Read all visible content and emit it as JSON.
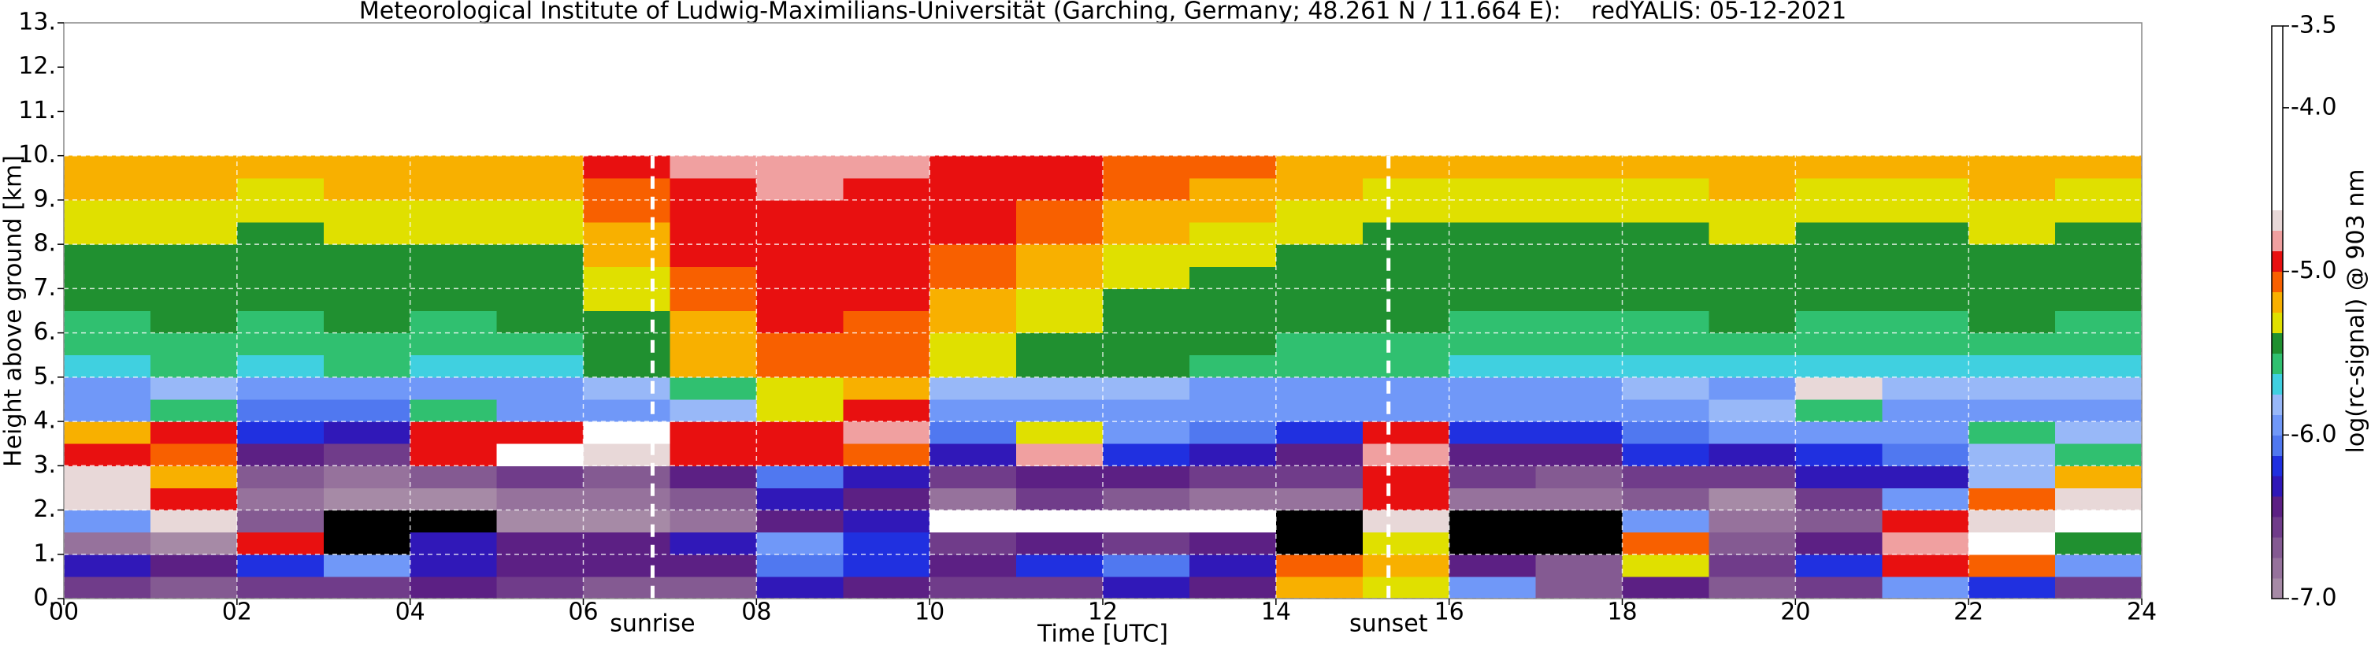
{
  "chart_data": {
    "type": "heatmap",
    "title": "Meteorological Institute of Ludwig-Maximilians-Universität (Garching, Germany; 48.261 N / 11.664 E):    redYALIS: 05-12-2021",
    "xlabel": "Time [UTC]",
    "ylabel": "Height above ground [km]",
    "colorbar_label": "log(rc-signal) @ 903 nm",
    "xlim": [
      0,
      24
    ],
    "ylim": [
      0,
      13
    ],
    "xticks": [
      {
        "value": 0,
        "label": "00"
      },
      {
        "value": 2,
        "label": "02"
      },
      {
        "value": 4,
        "label": "04"
      },
      {
        "value": 6,
        "label": "06"
      },
      {
        "value": 8,
        "label": "08"
      },
      10,
      12,
      14,
      16,
      18,
      20,
      22,
      24
    ],
    "yticks": [
      {
        "value": 0,
        "label": "0."
      },
      {
        "value": 1,
        "label": "1."
      },
      {
        "value": 2,
        "label": "2."
      },
      {
        "value": 3,
        "label": "3."
      },
      {
        "value": 4,
        "label": "4."
      },
      {
        "value": 5,
        "label": "5."
      },
      {
        "value": 6,
        "label": "6."
      },
      {
        "value": 7,
        "label": "7."
      },
      {
        "value": 8,
        "label": "8."
      },
      {
        "value": 9,
        "label": "9."
      },
      {
        "value": 10,
        "label": "10."
      },
      {
        "value": 11,
        "label": "11."
      },
      {
        "value": 12,
        "label": "12."
      },
      {
        "value": 13,
        "label": "13."
      }
    ],
    "grid": true,
    "grid_color": "#ffffff",
    "clim": [
      -7,
      -3.5
    ],
    "cticks": [
      -3.5,
      {
        "value": -4,
        "label": "-4.0"
      },
      {
        "value": -5,
        "label": "-5.0"
      },
      {
        "value": -6,
        "label": "-6.0"
      },
      {
        "value": -7,
        "label": "-7.0"
      }
    ],
    "under_color": "#000000",
    "colors": [
      "#a68aa6",
      "#96729c",
      "#845a92",
      "#703c8a",
      "#5c2084",
      "#3018b8",
      "#2030e0",
      "#5078f0",
      "#7098f8",
      "#98b8f8",
      "#40d0e0",
      "#30c070",
      "#209030",
      "#e0e000",
      "#f8b000",
      "#f86000",
      "#e81010",
      "#f0a0a0",
      "#e8d8d8",
      "#ffffff",
      "#ffffff",
      "#ffffff",
      "#ffffff",
      "#ffffff",
      "#ffffff",
      "#ffffff",
      "#ffffff",
      "#ffffff"
    ],
    "annotations": [
      {
        "text": "sunrise",
        "x": 6.8
      },
      {
        "text": "sunset",
        "x": 15.3
      }
    ],
    "x": [
      0.5,
      1.5,
      2.5,
      3.5,
      4.5,
      5.5,
      6.5,
      7.5,
      8.5,
      9.5,
      10.5,
      11.5,
      12.5,
      13.5,
      14.5,
      15.5,
      16.5,
      17.5,
      18.5,
      19.5,
      20.5,
      21.5,
      22.5,
      23.5
    ],
    "y": [
      0.25,
      0.75,
      1.25,
      1.75,
      2.25,
      2.75,
      3.25,
      3.75,
      4.25,
      4.75,
      5.25,
      5.75,
      6.25,
      6.75,
      7.25,
      7.75,
      8.25,
      8.75,
      9.25,
      9.75
    ],
    "z": [
      [
        -6.6,
        -6.7,
        -6.6,
        -6.6,
        -6.5,
        -6.6,
        -6.7,
        -6.7,
        -6.3,
        -6.4,
        -6.6,
        -6.6,
        -6.3,
        -6.5,
        -5.2,
        -5.3,
        -6.0,
        -6.7,
        -6.4,
        -6.7,
        -6.6,
        -6.0,
        -6.2,
        -6.6
      ],
      [
        -6.3,
        -6.4,
        -6.2,
        -6.0,
        -6.3,
        -6.4,
        -6.5,
        -6.4,
        -6.1,
        -6.2,
        -6.4,
        -6.2,
        -6.1,
        -6.3,
        -5.1,
        -5.2,
        -6.5,
        -6.7,
        -5.3,
        -6.6,
        -6.2,
        -5.0,
        -5.1,
        -6.0
      ],
      [
        -6.8,
        -6.9,
        -5.0,
        -7.5,
        -6.3,
        -6.4,
        -6.5,
        -6.3,
        -6.0,
        -6.2,
        -6.6,
        -6.5,
        -6.6,
        -6.4,
        -7.5,
        -5.3,
        -7.5,
        -7.5,
        -5.1,
        -6.7,
        -6.5,
        -4.8,
        -4.6,
        -5.5
      ],
      [
        -6.0,
        -4.7,
        -6.7,
        -7.5,
        -7.3,
        -6.9,
        -6.9,
        -6.8,
        -6.4,
        -6.3,
        -4.6,
        -4.6,
        -4.6,
        -4.6,
        -7.2,
        -4.7,
        -7.2,
        -7.4,
        -5.9,
        -6.8,
        -6.7,
        -4.9,
        -4.7,
        -4.6
      ],
      [
        -4.7,
        -5.0,
        -6.8,
        -6.9,
        -6.9,
        -6.8,
        -6.8,
        -6.7,
        -6.3,
        -6.4,
        -6.8,
        -6.6,
        -6.7,
        -6.8,
        -6.8,
        -4.9,
        -6.8,
        -6.8,
        -6.7,
        -6.9,
        -6.6,
        -6.0,
        -5.1,
        -4.7
      ],
      [
        -4.7,
        -5.2,
        -6.7,
        -6.8,
        -6.7,
        -6.6,
        -6.7,
        -6.5,
        -6.1,
        -6.3,
        -6.6,
        -6.5,
        -6.4,
        -6.6,
        -6.6,
        -5.0,
        -6.6,
        -6.7,
        -6.6,
        -6.6,
        -6.3,
        -6.3,
        -5.8,
        -5.2
      ],
      [
        -4.9,
        -5.1,
        -6.4,
        -6.6,
        -4.9,
        -4.6,
        -4.7,
        -5.0,
        -5.0,
        -5.1,
        -6.3,
        -4.8,
        -6.2,
        -6.3,
        -6.4,
        -4.8,
        -6.4,
        -6.5,
        -6.2,
        -6.3,
        -6.2,
        -6.1,
        -5.8,
        -5.6
      ],
      [
        -5.2,
        -5.0,
        -6.2,
        -6.3,
        -5.0,
        -4.9,
        -4.6,
        -4.9,
        -5.0,
        -4.8,
        -6.1,
        -5.3,
        -6.0,
        -6.1,
        -6.2,
        -5.0,
        -6.2,
        -6.2,
        -6.1,
        -6.0,
        -5.9,
        -6.0,
        -5.6,
        -5.8
      ],
      [
        -6.0,
        -5.6,
        -6.1,
        -6.1,
        -5.6,
        -6.0,
        -6.0,
        -5.8,
        -5.3,
        -5.0,
        -5.9,
        -6.0,
        -5.9,
        -6.0,
        -6.0,
        -6.0,
        -6.0,
        -6.0,
        -5.9,
        -5.8,
        -5.6,
        -5.9,
        -5.9,
        -5.9
      ],
      [
        -5.9,
        -5.8,
        -5.9,
        -5.9,
        -5.9,
        -5.9,
        -5.8,
        -5.6,
        -5.3,
        -5.2,
        -5.8,
        -5.8,
        -5.8,
        -5.9,
        -5.9,
        -5.9,
        -5.9,
        -5.9,
        -5.8,
        -5.9,
        -4.7,
        -5.8,
        -5.8,
        -5.8
      ],
      [
        -5.7,
        -5.6,
        -5.7,
        -5.6,
        -5.7,
        -5.7,
        -5.5,
        -5.2,
        -5.1,
        -5.1,
        -5.3,
        -5.4,
        -5.5,
        -5.6,
        -5.6,
        -5.6,
        -5.7,
        -5.7,
        -5.7,
        -5.7,
        -5.7,
        -5.7,
        -5.7,
        -5.7
      ],
      [
        -5.6,
        -5.6,
        -5.6,
        -5.6,
        -5.6,
        -5.6,
        -5.4,
        -5.2,
        -5.1,
        -5.1,
        -5.3,
        -5.4,
        -5.5,
        -5.5,
        -5.6,
        -5.6,
        -5.6,
        -5.6,
        -5.6,
        -5.6,
        -5.6,
        -5.6,
        -5.6,
        -5.6
      ],
      [
        -5.6,
        -5.5,
        -5.6,
        -5.5,
        -5.6,
        -5.5,
        -5.4,
        -5.2,
        -5.0,
        -5.1,
        -5.2,
        -5.3,
        -5.4,
        -5.5,
        -5.5,
        -5.5,
        -5.6,
        -5.6,
        -5.6,
        -5.5,
        -5.6,
        -5.6,
        -5.5,
        -5.6
      ],
      [
        -5.5,
        -5.5,
        -5.5,
        -5.5,
        -5.5,
        -5.5,
        -5.3,
        -5.1,
        -5.0,
        -5.0,
        -5.2,
        -5.3,
        -5.4,
        -5.4,
        -5.5,
        -5.5,
        -5.5,
        -5.5,
        -5.5,
        -5.5,
        -5.5,
        -5.5,
        -5.5,
        -5.5
      ],
      [
        -5.4,
        -5.4,
        -5.5,
        -5.4,
        -5.4,
        -5.4,
        -5.3,
        -5.1,
        -5.0,
        -5.0,
        -5.1,
        -5.2,
        -5.3,
        -5.4,
        -5.4,
        -5.5,
        -5.5,
        -5.5,
        -5.5,
        -5.4,
        -5.5,
        -5.5,
        -5.4,
        -5.5
      ],
      [
        -5.4,
        -5.4,
        -5.4,
        -5.4,
        -5.4,
        -5.4,
        -5.2,
        -5.0,
        -4.9,
        -5.0,
        -5.1,
        -5.2,
        -5.3,
        -5.3,
        -5.4,
        -5.4,
        -5.4,
        -5.4,
        -5.4,
        -5.4,
        -5.4,
        -5.4,
        -5.4,
        -5.4
      ],
      [
        -5.3,
        -5.3,
        -5.4,
        -5.3,
        -5.3,
        -5.3,
        -5.2,
        -5.0,
        -4.9,
        -4.9,
        -5.0,
        -5.1,
        -5.2,
        -5.3,
        -5.3,
        -5.4,
        -5.4,
        -5.4,
        -5.4,
        -5.3,
        -5.4,
        -5.4,
        -5.3,
        -5.4
      ],
      [
        -5.3,
        -5.3,
        -5.3,
        -5.3,
        -5.3,
        -5.3,
        -5.1,
        -4.9,
        -4.9,
        -4.9,
        -5.0,
        -5.1,
        -5.2,
        -5.2,
        -5.3,
        -5.3,
        -5.3,
        -5.3,
        -5.3,
        -5.3,
        -5.3,
        -5.3,
        -5.3,
        -5.3
      ],
      [
        -5.2,
        -5.2,
        -5.3,
        -5.2,
        -5.2,
        -5.2,
        -5.1,
        -4.9,
        -4.8,
        -4.9,
        -5.0,
        -5.0,
        -5.1,
        -5.2,
        -5.2,
        -5.3,
        -5.3,
        -5.3,
        -5.3,
        -5.2,
        -5.3,
        -5.3,
        -5.2,
        -5.3
      ],
      [
        -5.2,
        -5.2,
        -5.2,
        -5.2,
        -5.2,
        -5.2,
        -5.0,
        -4.8,
        -4.8,
        -4.8,
        -4.9,
        -5.0,
        -5.1,
        -5.1,
        -5.2,
        -5.2,
        -5.2,
        -5.2,
        -5.2,
        -5.2,
        -5.2,
        -5.2,
        -5.2,
        -5.2
      ]
    ]
  }
}
